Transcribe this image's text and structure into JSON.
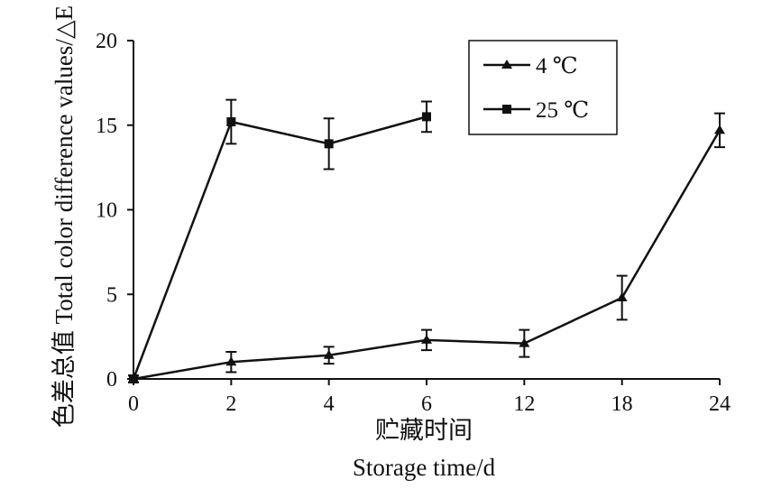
{
  "chart_data": {
    "type": "line",
    "title": "",
    "xlabel_cn": "贮藏时间",
    "xlabel": "Storage time/d",
    "ylabel": "色差总值 Total color difference values/△E",
    "categories": [
      "0",
      "2",
      "4",
      "6",
      "12",
      "18",
      "24"
    ],
    "ylim": [
      0,
      20
    ],
    "yticks": [
      0,
      5,
      10,
      15,
      20
    ],
    "grid": false,
    "legend_position": "top-right",
    "series": [
      {
        "name": "4 ℃",
        "marker": "triangle",
        "values": [
          0,
          1.0,
          1.4,
          2.3,
          2.1,
          4.8,
          14.7
        ],
        "errors": [
          0.2,
          0.6,
          0.5,
          0.6,
          0.8,
          1.3,
          1.0
        ]
      },
      {
        "name": "25 ℃",
        "marker": "square",
        "values": [
          0,
          15.2,
          13.9,
          15.5,
          null,
          null,
          null
        ],
        "errors": [
          0.2,
          1.3,
          1.5,
          0.9,
          null,
          null,
          null
        ]
      }
    ],
    "colors": {
      "line": "#111111",
      "background": "#ffffff"
    }
  }
}
